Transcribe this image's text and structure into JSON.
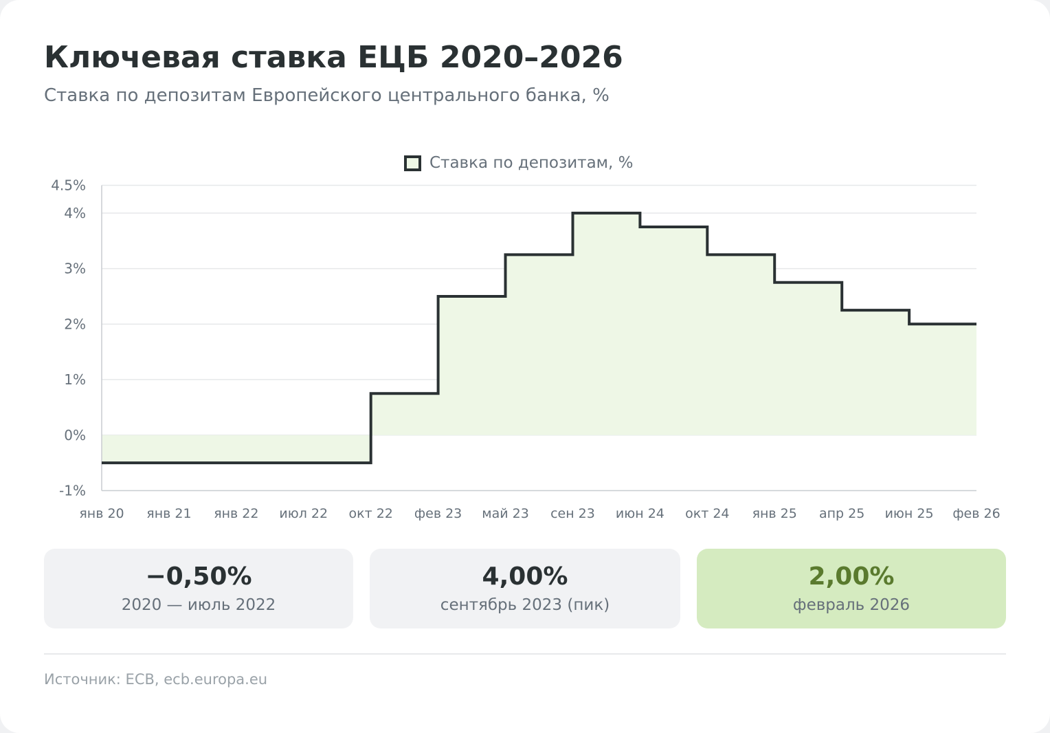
{
  "header": {
    "title": "Ключевая ставка ЕЦБ 2020–2026",
    "subtitle": "Ставка по депозитам Европейского центрального банка, %"
  },
  "legend": {
    "label": "Ставка по депозитам, %"
  },
  "chart_data": {
    "type": "area",
    "step": true,
    "series": [
      {
        "name": "Ставка по депозитам, %",
        "values": [
          -0.5,
          -0.5,
          -0.5,
          -0.5,
          0.75,
          2.5,
          3.25,
          4.0,
          3.75,
          3.25,
          2.75,
          2.25,
          2.0,
          2.0
        ]
      }
    ],
    "categories": [
      "янв 20",
      "янв 21",
      "янв 22",
      "июл 22",
      "окт 22",
      "фев 23",
      "май 23",
      "сен 23",
      "июн 24",
      "окт 24",
      "янв 25",
      "апр 25",
      "июн 25",
      "фев 26"
    ],
    "y_ticks": [
      -1,
      0,
      1,
      2,
      3,
      4,
      4.5
    ],
    "y_tick_labels": [
      "-1%",
      "0%",
      "1%",
      "2%",
      "3%",
      "4%",
      "4.5%"
    ],
    "ylim": [
      -1,
      4.5
    ],
    "grid": true,
    "legend_position": "top-center",
    "colors": {
      "line": "#2a3133",
      "fill": "#eef7e6",
      "grid": "#e6e8ea",
      "axis": "#c8ccd0",
      "tick_text": "#66707a"
    }
  },
  "stats": [
    {
      "value": "−0,50%",
      "label": "2020 — июль 2022"
    },
    {
      "value": "4,00%",
      "label": "сентябрь 2023 (пик)"
    },
    {
      "value": "2,00%",
      "label": "февраль 2026"
    }
  ],
  "footer": {
    "source": "Источник: ECB, ecb.europa.eu"
  }
}
